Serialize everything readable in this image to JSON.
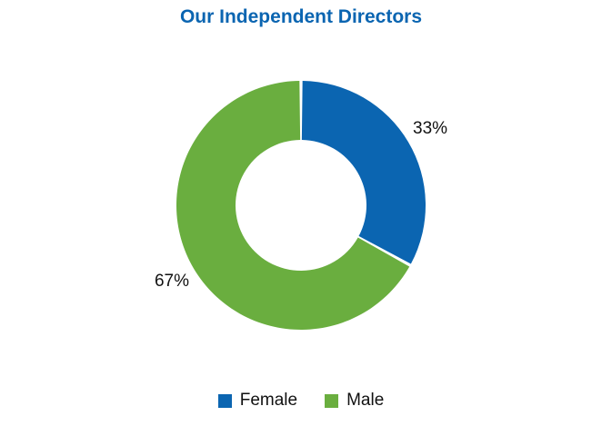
{
  "chart_data": {
    "type": "pie",
    "title": "Our Independent Directors",
    "donut": true,
    "categories": [
      "Female",
      "Male"
    ],
    "values": [
      33,
      67
    ],
    "data_labels": [
      "33%",
      "67%"
    ],
    "colors": [
      "#0b65b1",
      "#6aae3f"
    ],
    "legend_position": "bottom"
  }
}
